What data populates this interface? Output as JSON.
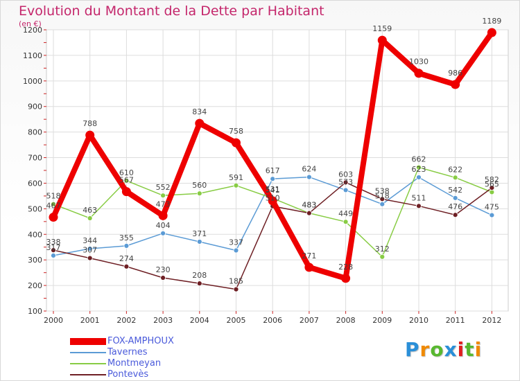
{
  "chart_data": {
    "type": "line",
    "title": "Evolution du Montant de la Dette par Habitant",
    "unit_label": "(en €)",
    "xlabel": "",
    "ylabel": "",
    "x": [
      "2000",
      "2001",
      "2002",
      "2003",
      "2004",
      "2005",
      "2006",
      "2007",
      "2008",
      "2009",
      "2010",
      "2011",
      "2012"
    ],
    "ylim": [
      100,
      1200
    ],
    "yticks": [
      100,
      200,
      300,
      400,
      500,
      600,
      700,
      800,
      900,
      1000,
      1100,
      1200
    ],
    "grid": true,
    "legend_position": "bottom-left",
    "series": [
      {
        "name": "FOX-AMPHOUX",
        "color": "#ee0000",
        "emphasis": true,
        "values": [
          467,
          788,
          567,
          473,
          834,
          758,
          531,
          271,
          228,
          1159,
          1030,
          986,
          1189
        ]
      },
      {
        "name": "Tavernes",
        "color": "#5b9bd5",
        "values": [
          317,
          344,
          355,
          404,
          371,
          337,
          617,
          624,
          573,
          518,
          623,
          542,
          475
        ]
      },
      {
        "name": "Montmeyan",
        "color": "#88cc44",
        "values": [
          518,
          463,
          610,
          552,
          560,
          591,
          541,
          483,
          449,
          312,
          662,
          622,
          565
        ]
      },
      {
        "name": "Pontevès",
        "color": "#6e1f24",
        "values": [
          338,
          307,
          274,
          230,
          208,
          185,
          510,
          483,
          603,
          538,
          511,
          476,
          582
        ]
      }
    ]
  },
  "legend": {
    "items": [
      {
        "label": "FOX-AMPHOUX",
        "color": "#ee0000",
        "thickness": 10
      },
      {
        "label": "Tavernes",
        "color": "#5b9bd5",
        "thickness": 2
      },
      {
        "label": "Montmeyan",
        "color": "#88cc44",
        "thickness": 2
      },
      {
        "label": "Pontevès",
        "color": "#6e1f24",
        "thickness": 2
      }
    ]
  },
  "logo": {
    "text": "Proxiti",
    "letters": [
      "P",
      "r",
      "o",
      "x",
      "i",
      "t",
      "i"
    ],
    "colors": [
      "#2a8fd8",
      "#f08a00",
      "#58b82f",
      "#2a8fd8",
      "#e02020",
      "#58b82f",
      "#f08a00"
    ]
  }
}
